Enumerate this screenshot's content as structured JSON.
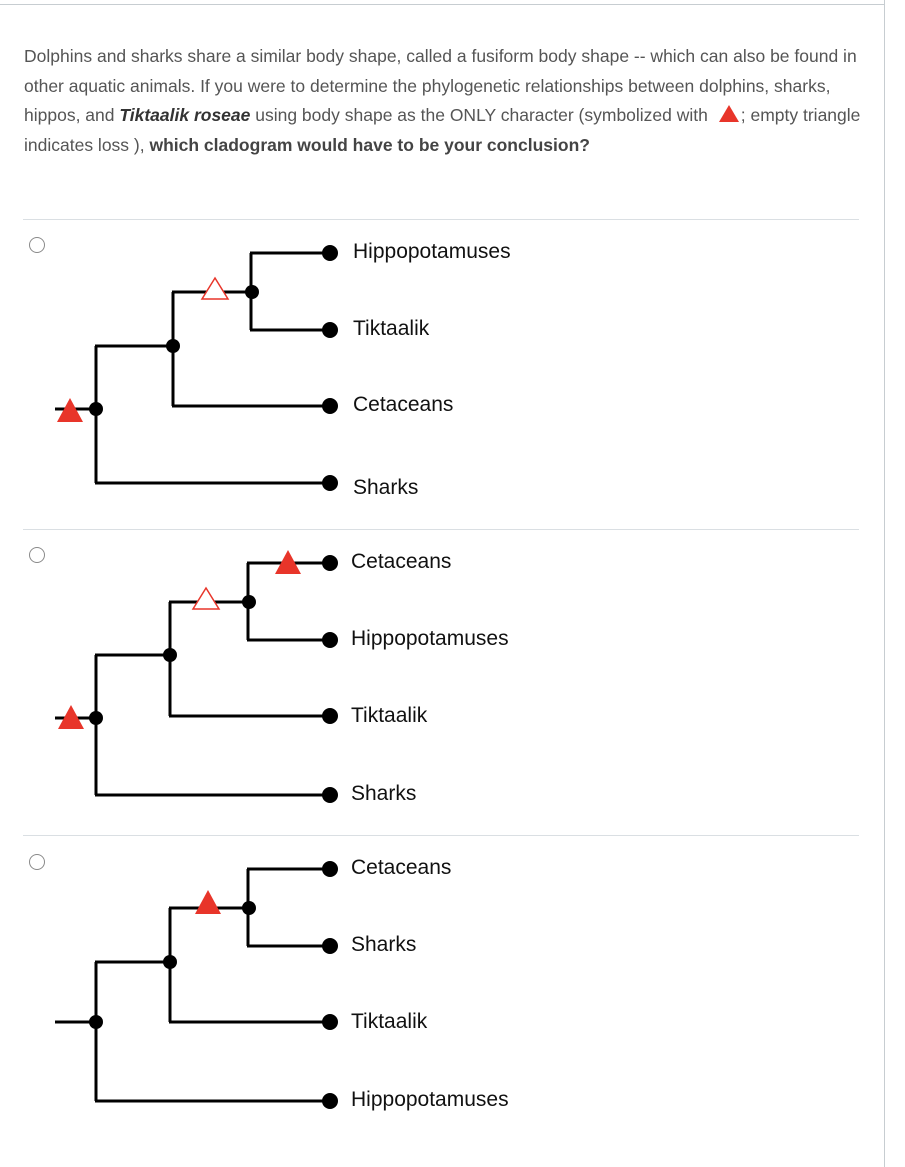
{
  "question": {
    "part1": "Dolphins and sharks share a similar body shape, called a fusiform body shape -- which can also be found in other aquatic animals. If you were to determine the phylogenetic relationships between dolphins, sharks, hippos, and ",
    "species": "Tiktaalik roseae",
    "part2": " using body shape as the ONLY character (symbolized with ",
    "part3": "; empty triangle indicates loss ), ",
    "emphasis": "which cladogram would have to be your conclusion?",
    "legend_color": "#e8352a"
  },
  "options": [
    {
      "taxa": [
        "Hippopotamuses",
        "Tiktaalik",
        "Cetaceans",
        "Sharks"
      ]
    },
    {
      "taxa": [
        "Cetaceans",
        "Hippopotamuses",
        "Tiktaalik",
        "Sharks"
      ]
    },
    {
      "taxa": [
        "Cetaceans",
        "Sharks",
        "Tiktaalik",
        "Hippopotamuses"
      ]
    }
  ]
}
